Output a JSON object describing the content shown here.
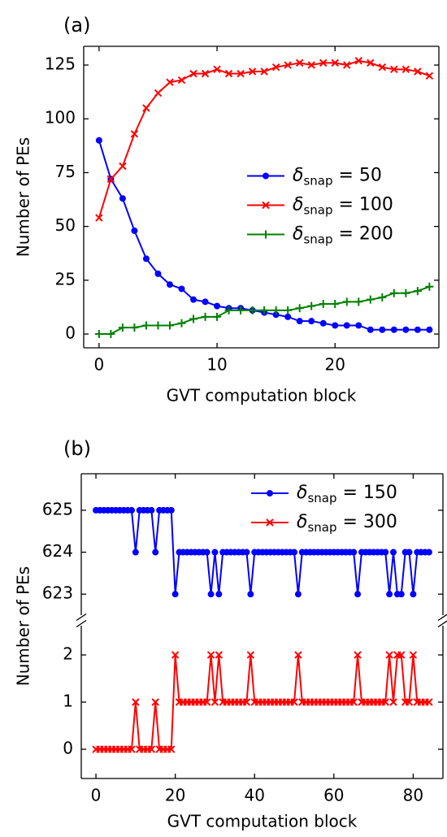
{
  "chart_data": [
    {
      "type": "line",
      "title": "(a)",
      "xlabel": "GVT computation block",
      "ylabel": "Number of PEs",
      "x": [
        0,
        1,
        2,
        3,
        4,
        5,
        6,
        7,
        8,
        9,
        10,
        11,
        12,
        13,
        14,
        15,
        16,
        17,
        18,
        19,
        20,
        21,
        22,
        23,
        24,
        25,
        26,
        27,
        28
      ],
      "series": [
        {
          "name": "δsnap = 50",
          "color": "#0000ff",
          "marker": "o",
          "values": [
            90,
            72,
            63,
            48,
            35,
            28,
            23,
            21,
            16,
            15,
            13,
            12,
            12,
            11,
            10,
            9,
            8,
            6,
            6,
            5,
            4,
            4,
            4,
            2,
            2,
            2,
            2,
            2,
            2
          ]
        },
        {
          "name": "δsnap = 100",
          "color": "#ff0000",
          "marker": "x",
          "values": [
            54,
            72,
            78,
            93,
            105,
            112,
            117,
            118,
            121,
            121,
            123,
            121,
            121,
            122,
            122,
            124,
            125,
            126,
            125,
            126,
            126,
            125,
            127,
            126,
            124,
            123,
            123,
            122,
            120
          ]
        },
        {
          "name": "δsnap = 200",
          "color": "#008000",
          "marker": "+",
          "values": [
            0,
            0,
            3,
            3,
            4,
            4,
            4,
            5,
            7,
            8,
            8,
            11,
            11,
            11,
            11,
            11,
            11,
            12,
            13,
            14,
            14,
            15,
            15,
            16,
            17,
            19,
            19,
            20,
            22
          ]
        }
      ],
      "xlim": [
        -1.3,
        28.8
      ],
      "xticks": [
        0,
        10,
        20
      ],
      "ylim": [
        -6.4,
        133.7
      ],
      "yticks": [
        0,
        25,
        50,
        75,
        100,
        125
      ],
      "grid": false,
      "legend": "center right"
    },
    {
      "type": "line",
      "title": "(b)",
      "xlabel": "GVT computation block",
      "ylabel": "Number of PEs",
      "x": [
        0,
        1,
        2,
        3,
        4,
        5,
        6,
        7,
        8,
        9,
        10,
        11,
        12,
        13,
        14,
        15,
        16,
        17,
        18,
        19,
        20,
        21,
        22,
        23,
        24,
        25,
        26,
        27,
        28,
        29,
        30,
        31,
        32,
        33,
        34,
        35,
        36,
        37,
        38,
        39,
        40,
        41,
        42,
        43,
        44,
        45,
        46,
        47,
        48,
        49,
        50,
        51,
        52,
        53,
        54,
        55,
        56,
        57,
        58,
        59,
        60,
        61,
        62,
        63,
        64,
        65,
        66,
        67,
        68,
        69,
        70,
        71,
        72,
        73,
        74,
        75,
        76,
        77,
        78,
        79,
        80,
        81,
        82,
        83,
        84
      ],
      "series": [
        {
          "name": "δsnap = 150",
          "color": "#0000ff",
          "marker": "o",
          "axis": "upper",
          "values": [
            625,
            625,
            625,
            625,
            625,
            625,
            625,
            625,
            625,
            625,
            624,
            625,
            625,
            625,
            625,
            624,
            625,
            625,
            625,
            625,
            623,
            624,
            624,
            624,
            624,
            624,
            624,
            624,
            624,
            623,
            624,
            623,
            624,
            624,
            624,
            624,
            624,
            624,
            624,
            623,
            624,
            624,
            624,
            624,
            624,
            624,
            624,
            624,
            624,
            624,
            624,
            623,
            624,
            624,
            624,
            624,
            624,
            624,
            624,
            624,
            624,
            624,
            624,
            624,
            624,
            624,
            623,
            624,
            624,
            624,
            624,
            624,
            624,
            624,
            623,
            624,
            623,
            623,
            624,
            624,
            623,
            624,
            624,
            624,
            624
          ]
        },
        {
          "name": "δsnap = 300",
          "color": "#ff0000",
          "marker": "x",
          "axis": "lower",
          "values": [
            0,
            0,
            0,
            0,
            0,
            0,
            0,
            0,
            0,
            0,
            1,
            0,
            0,
            0,
            0,
            1,
            0,
            0,
            0,
            0,
            2,
            1,
            1,
            1,
            1,
            1,
            1,
            1,
            1,
            2,
            1,
            2,
            1,
            1,
            1,
            1,
            1,
            1,
            1,
            2,
            1,
            1,
            1,
            1,
            1,
            1,
            1,
            1,
            1,
            1,
            1,
            2,
            1,
            1,
            1,
            1,
            1,
            1,
            1,
            1,
            1,
            1,
            1,
            1,
            1,
            1,
            2,
            1,
            1,
            1,
            1,
            1,
            1,
            1,
            2,
            1,
            2,
            2,
            1,
            1,
            2,
            1,
            1,
            1,
            1
          ]
        }
      ],
      "xlim": [
        -3.7,
        87.5
      ],
      "xticks": [
        0,
        20,
        40,
        60,
        80
      ],
      "ylim": [
        -0.62,
        2.62
      ],
      "yticks": [
        0,
        1,
        2
      ],
      "ylim_upper": [
        622.5,
        625.87
      ],
      "yticks_upper": [
        623,
        624,
        625
      ],
      "grid": false,
      "legend": "upper right"
    }
  ]
}
